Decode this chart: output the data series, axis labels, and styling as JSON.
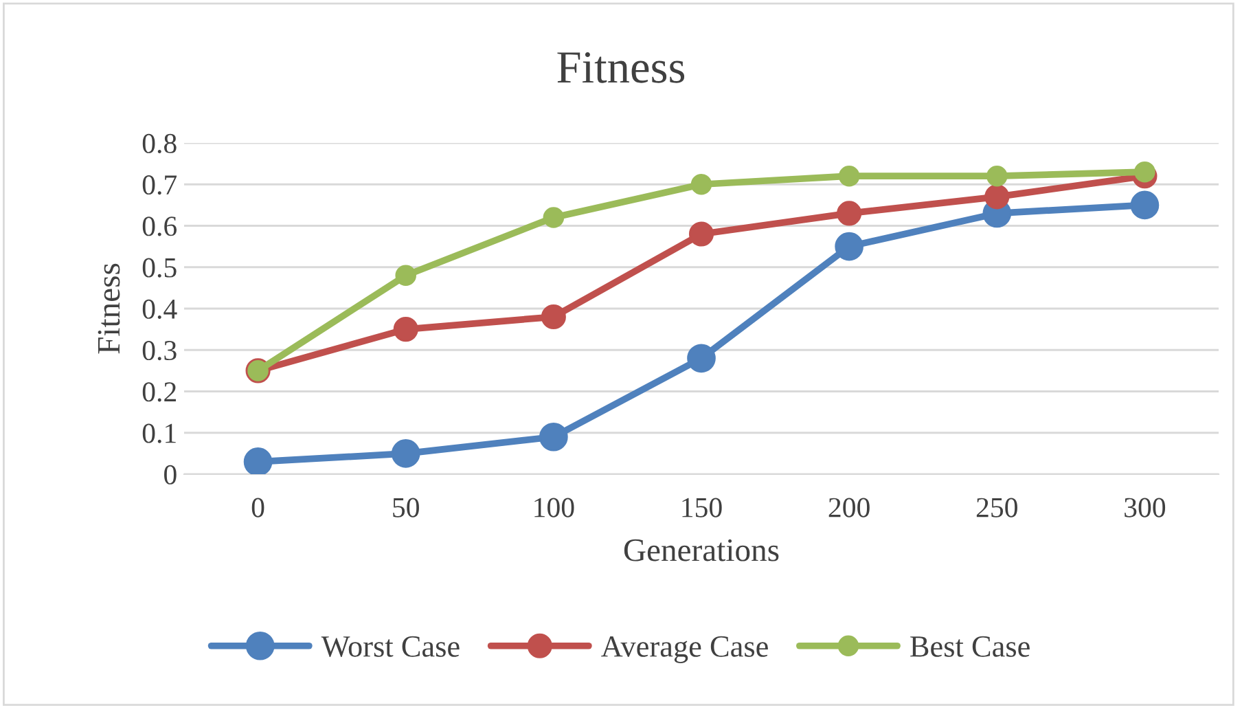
{
  "chart_data": {
    "type": "line",
    "title": "Fitness",
    "xlabel": "Generations",
    "ylabel": "Fitness",
    "categories": [
      "0",
      "50",
      "100",
      "150",
      "200",
      "250",
      "300"
    ],
    "series": [
      {
        "name": "Worst Case",
        "color": "#4f81bd",
        "values": [
          0.03,
          0.05,
          0.09,
          0.28,
          0.55,
          0.63,
          0.65
        ]
      },
      {
        "name": "Average Case",
        "color": "#c0504d",
        "values": [
          0.25,
          0.35,
          0.38,
          0.58,
          0.63,
          0.67,
          0.72
        ]
      },
      {
        "name": "Best Case",
        "color": "#9bbb59",
        "values": [
          0.25,
          0.48,
          0.62,
          0.7,
          0.72,
          0.72,
          0.73
        ]
      }
    ],
    "ylim": [
      0,
      0.8
    ],
    "yticks": [
      0,
      0.1,
      0.2,
      0.3,
      0.4,
      0.5,
      0.6,
      0.7,
      0.8
    ],
    "grid": "y",
    "legend": "bottom",
    "marker": "circle",
    "line_style": "solid"
  }
}
